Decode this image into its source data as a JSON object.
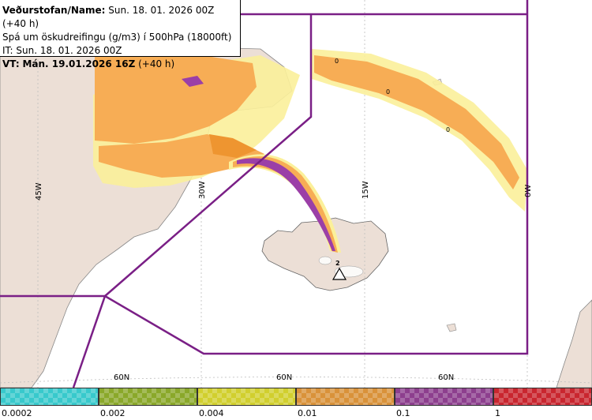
{
  "header": {
    "org_label": "Veðurstofan/Name:",
    "run_time": "Sun. 18. 01. 2026 00Z (+40 h)",
    "description": "Spá um öskudreifingu (g/m3) í 500hPa (18000ft)",
    "issue_time": "IT: Sun. 18. 01. 2026 00Z",
    "valid_label": "VT:",
    "valid_day": "Mán. 19.01.2026 16Z",
    "valid_offset": "(+40 h)"
  },
  "map": {
    "longitude_labels": [
      "45W",
      "30W",
      "15W",
      "0W"
    ],
    "latitude_labels": [
      "60N",
      "60N",
      "60N"
    ],
    "contour_labels": [
      "0",
      "0",
      "0",
      "2"
    ],
    "source_marker": "volcano-triangle-icon",
    "colors": {
      "land": "#ecdfd6",
      "ocean": "#ffffff",
      "boundary": "#7a1f86",
      "grid": "#bdbdbd"
    }
  },
  "legend": {
    "ticks": [
      "0.0002",
      "0.002",
      "0.004",
      "0.01",
      "0.1",
      "1"
    ],
    "colors": [
      "#38c9cc",
      "#8aa82a",
      "#d1cf2e",
      "#d9923a",
      "#8d3f8e",
      "#c9262f"
    ]
  }
}
